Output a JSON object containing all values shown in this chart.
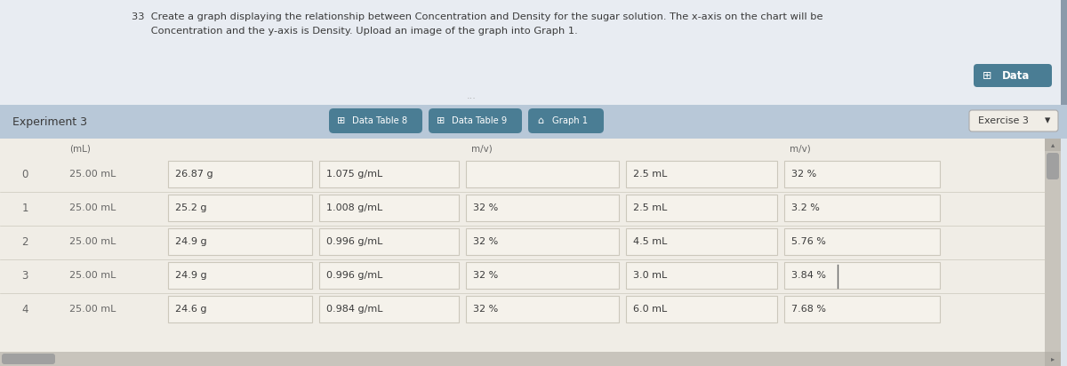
{
  "bg_top": "#dde4ec",
  "bg_header_bar": "#b8c8d8",
  "bg_table": "#f0ede6",
  "bg_top_panel": "#e8ecf2",
  "cell_bg": "#f5f2eb",
  "cell_border": "#ccc8bc",
  "tab_bg": "#4a7d94",
  "tab_graph_bg": "#5a9aaf",
  "text_dark": "#3a3a3a",
  "text_medium": "#666666",
  "text_light": "#888888",
  "header_text_line1": "33  Create a graph displaying the relationship between Concentration and Density for the sugar solution. The x-axis on the chart will be",
  "header_text_line2": "      Concentration and the y-axis is Density. Upload an image of the graph into Graph 1.",
  "experiment_label": "Experiment 3",
  "tab1": "Data Table 8",
  "tab2": "Data Table 9",
  "tab3": "Graph 1",
  "tab_right": "Exercise 3",
  "data_btn": "Data",
  "row_indices": [
    "0",
    "1",
    "2",
    "3",
    "4"
  ],
  "col1_vals": [
    "25.00 mL",
    "25.00 mL",
    "25.00 mL",
    "25.00 mL",
    "25.00 mL"
  ],
  "col2_vals": [
    "26.87 g",
    "25.2 g",
    "24.9 g",
    "24.9 g",
    "24.6 g"
  ],
  "col3_vals": [
    "1.075 g/mL",
    "1.008 g/mL",
    "0.996 g/mL",
    "0.996 g/mL",
    "0.984 g/mL"
  ],
  "col4_vals": [
    "",
    "32 %",
    "32 %",
    "32 %",
    "32 %"
  ],
  "col5_vals": [
    "2.5 mL",
    "2.5 mL",
    "4.5 mL",
    "3.0 mL",
    "6.0 mL"
  ],
  "col6_vals": [
    "32 %",
    "3.2 %",
    "5.76 %",
    "3.84 %",
    "7.68 %"
  ],
  "dots_text": "...",
  "scrollbar_right_color": "#c8c4bc",
  "scrollbar_thumb": "#a0a0a0",
  "scrollbar_bottom_color": "#c8c4bc"
}
